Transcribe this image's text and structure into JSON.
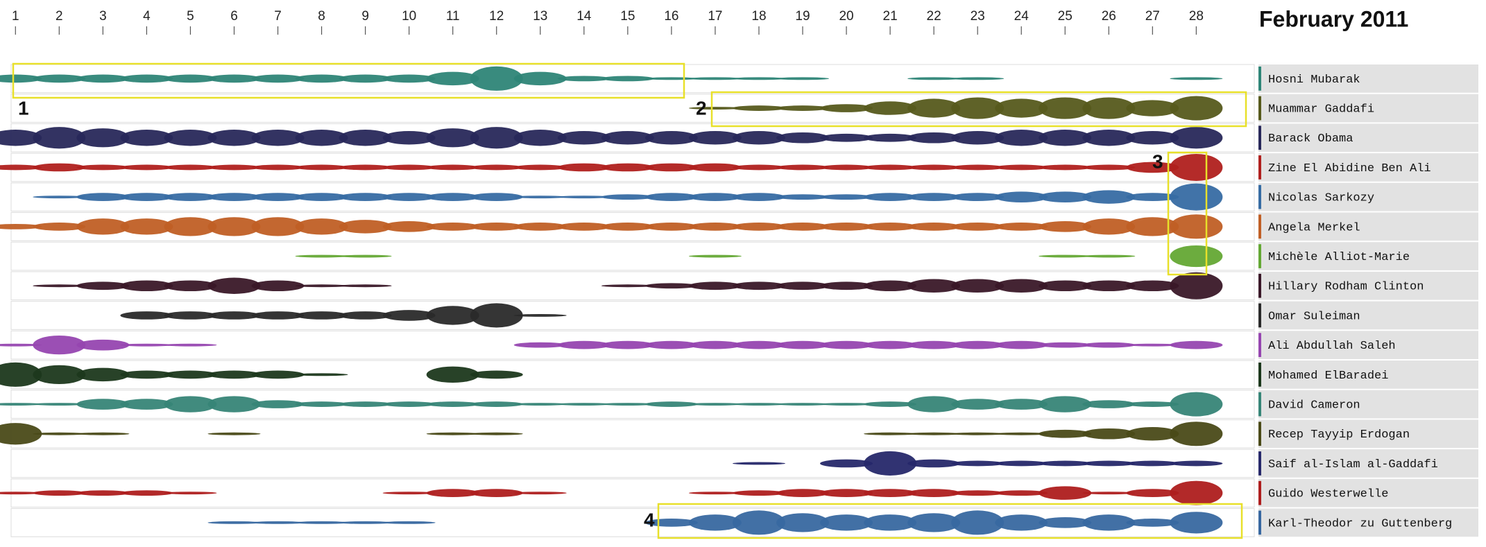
{
  "chart_data": {
    "type": "stream",
    "title": "February 2011",
    "x": [
      1,
      2,
      3,
      4,
      5,
      6,
      7,
      8,
      9,
      10,
      11,
      12,
      13,
      14,
      15,
      16,
      17,
      18,
      19,
      20,
      21,
      22,
      23,
      24,
      25,
      26,
      27,
      28
    ],
    "xlim": [
      0.9,
      29.2
    ],
    "xticks": [
      1,
      2,
      3,
      4,
      5,
      6,
      7,
      8,
      9,
      10,
      11,
      12,
      13,
      14,
      15,
      16,
      17,
      18,
      19,
      20,
      21,
      22,
      23,
      24,
      25,
      26,
      27,
      28
    ],
    "annotations": [
      "1",
      "2",
      "3",
      "4"
    ],
    "series": [
      {
        "name": "Hosni Mubarak",
        "color": "#2e8577",
        "values": [
          3,
          3,
          3,
          3,
          3,
          3,
          3,
          3,
          3,
          3,
          5,
          9,
          5,
          2,
          2,
          1,
          1,
          1,
          1,
          0,
          0,
          1,
          1,
          0,
          0,
          0,
          0,
          1
        ]
      },
      {
        "name": "Muammar Gaddafi",
        "color": "#565a1c",
        "values": [
          0,
          0,
          0,
          0,
          0,
          0,
          0,
          0,
          0,
          0,
          0,
          0,
          0,
          0,
          0,
          0,
          1,
          2,
          2,
          3,
          5,
          7,
          8,
          7,
          8,
          8,
          6,
          9
        ]
      },
      {
        "name": "Barack Obama",
        "color": "#28285a",
        "values": [
          6,
          8,
          7,
          6,
          6,
          6,
          6,
          6,
          6,
          5,
          7,
          8,
          6,
          5,
          5,
          5,
          5,
          5,
          4,
          3,
          3,
          4,
          5,
          6,
          6,
          6,
          5,
          8
        ]
      },
      {
        "name": "Zine El Abidine Ben Ali",
        "color": "#b0201e",
        "values": [
          2,
          3,
          2,
          2,
          2,
          2,
          2,
          2,
          2,
          2,
          2,
          2,
          2,
          3,
          3,
          3,
          3,
          2,
          2,
          2,
          2,
          2,
          2,
          2,
          2,
          2,
          4,
          10
        ]
      },
      {
        "name": "Nicolas Sarkozy",
        "color": "#376ca3",
        "values": [
          0,
          1,
          3,
          3,
          3,
          3,
          3,
          3,
          3,
          3,
          3,
          3,
          1,
          1,
          2,
          3,
          3,
          3,
          2,
          2,
          3,
          3,
          3,
          4,
          4,
          5,
          3,
          10
        ]
      },
      {
        "name": "Angela Merkel",
        "color": "#c05f25",
        "values": [
          2,
          3,
          6,
          6,
          7,
          7,
          7,
          6,
          5,
          4,
          3,
          3,
          3,
          3,
          3,
          3,
          3,
          3,
          3,
          3,
          3,
          3,
          3,
          3,
          4,
          6,
          7,
          9
        ]
      },
      {
        "name": "Michèle Alliot-Marie",
        "color": "#64a834",
        "values": [
          0,
          0,
          0,
          0,
          0,
          0,
          0,
          1,
          1,
          0,
          0,
          0,
          0,
          0,
          0,
          0,
          1,
          0,
          0,
          0,
          0,
          0,
          0,
          0,
          1,
          1,
          0,
          8
        ]
      },
      {
        "name": "Hillary Rodham Clinton",
        "color": "#3a1828",
        "values": [
          0,
          1,
          3,
          4,
          4,
          6,
          4,
          1,
          1,
          0,
          0,
          0,
          0,
          0,
          1,
          2,
          3,
          3,
          3,
          3,
          4,
          5,
          5,
          5,
          4,
          4,
          4,
          10
        ]
      },
      {
        "name": "Omar Suleiman",
        "color": "#2a2a2a",
        "values": [
          0,
          0,
          0,
          3,
          3,
          3,
          3,
          3,
          3,
          4,
          7,
          9,
          1,
          0,
          0,
          0,
          0,
          0,
          0,
          0,
          0,
          0,
          0,
          0,
          0,
          0,
          0,
          0
        ]
      },
      {
        "name": "Ali Abdullah Saleh",
        "color": "#9646b0",
        "values": [
          1,
          7,
          4,
          1,
          1,
          0,
          0,
          0,
          0,
          0,
          0,
          0,
          2,
          3,
          3,
          3,
          3,
          3,
          3,
          3,
          3,
          3,
          3,
          3,
          2,
          2,
          1,
          3
        ]
      },
      {
        "name": "Mohamed ElBaradei",
        "color": "#1c381c",
        "values": [
          9,
          7,
          5,
          3,
          3,
          3,
          3,
          1,
          0,
          0,
          6,
          3,
          0,
          0,
          0,
          0,
          0,
          0,
          0,
          0,
          0,
          0,
          0,
          0,
          0,
          0,
          0,
          0
        ]
      },
      {
        "name": "David Cameron",
        "color": "#378577",
        "values": [
          1,
          1,
          4,
          4,
          6,
          6,
          3,
          2,
          2,
          2,
          2,
          2,
          1,
          1,
          1,
          2,
          1,
          1,
          1,
          1,
          2,
          6,
          4,
          4,
          6,
          3,
          2,
          9
        ]
      },
      {
        "name": "Recep Tayyip Erdogan",
        "color": "#4a4a18",
        "values": [
          8,
          1,
          1,
          0,
          0,
          1,
          0,
          0,
          0,
          0,
          1,
          1,
          0,
          0,
          0,
          0,
          0,
          0,
          0,
          0,
          1,
          1,
          1,
          1,
          3,
          4,
          5,
          9
        ]
      },
      {
        "name": "Saif al-Islam al-Gaddafi",
        "color": "#26286a",
        "values": [
          0,
          0,
          0,
          0,
          0,
          0,
          0,
          0,
          0,
          0,
          0,
          0,
          0,
          0,
          0,
          0,
          0,
          1,
          0,
          3,
          9,
          3,
          2,
          2,
          2,
          2,
          2,
          2
        ]
      },
      {
        "name": "Guido Westerwelle",
        "color": "#ae1e1e",
        "values": [
          1,
          2,
          2,
          2,
          1,
          0,
          0,
          0,
          0,
          1,
          3,
          3,
          1,
          0,
          0,
          0,
          1,
          2,
          3,
          3,
          3,
          3,
          2,
          2,
          5,
          1,
          3,
          9
        ]
      },
      {
        "name": "Karl-Theodor zu Guttenberg",
        "color": "#3868a0",
        "values": [
          0,
          0,
          0,
          0,
          0,
          1,
          1,
          1,
          1,
          1,
          0,
          0,
          0,
          0,
          0,
          3,
          6,
          9,
          7,
          6,
          6,
          7,
          9,
          6,
          4,
          6,
          3,
          8
        ]
      }
    ]
  }
}
